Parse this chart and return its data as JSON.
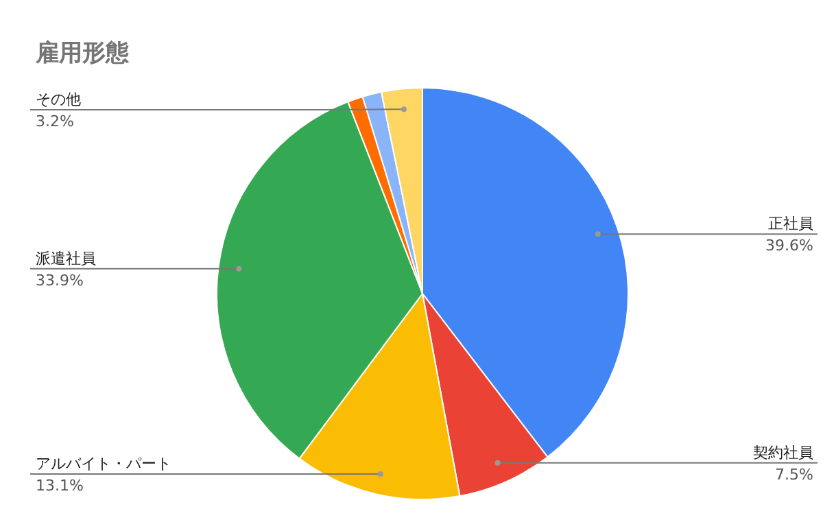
{
  "chart_data": {
    "type": "pie",
    "title": "雇用形態",
    "categories": [
      "正社員",
      "契約社員",
      "アルバイト・パート",
      "派遣社員",
      null,
      null,
      "その他"
    ],
    "values": [
      39.6,
      7.5,
      13.1,
      33.9,
      1.2,
      1.5,
      3.2
    ],
    "value_labels": [
      "39.6%",
      "7.5%",
      "13.1%",
      "33.9%",
      null,
      null,
      "3.2%"
    ],
    "colors": [
      "#4285f4",
      "#ea4335",
      "#fbbc04",
      "#34a853",
      "#ff6d01",
      "#8ab4f8",
      "#fdd663"
    ]
  }
}
